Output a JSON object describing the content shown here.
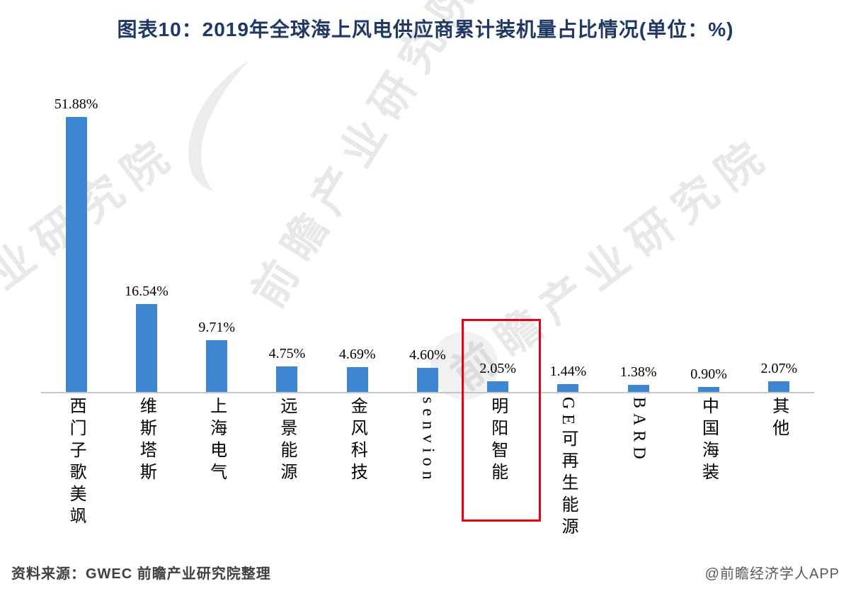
{
  "title": "图表10：2019年全球海上风电供应商累计装机量占比情况(单位：%)",
  "chart_data": {
    "type": "bar",
    "title": "2019年全球海上风电供应商累计装机量占比情况",
    "unit": "%",
    "categories": [
      "西门子歌美飒",
      "维斯塔斯",
      "上海电气",
      "远景能源",
      "金风科技",
      "senvion",
      "明阳智能",
      "GE可再生能源",
      "BARD",
      "中国海装",
      "其他"
    ],
    "values": [
      51.88,
      16.54,
      9.71,
      4.75,
      4.69,
      4.6,
      2.05,
      1.44,
      1.38,
      0.9,
      2.07
    ],
    "value_labels": [
      "51.88%",
      "16.54%",
      "9.71%",
      "4.75%",
      "4.69%",
      "4.60%",
      "2.05%",
      "1.44%",
      "1.38%",
      "0.90%",
      "2.07%"
    ],
    "highlighted_index": 6,
    "highlighted_category": "明阳智能",
    "bar_color": "#3e86cf",
    "highlight_color": "#e60012",
    "ylim": [
      0,
      55
    ],
    "grid": false,
    "legend": "none"
  },
  "footer": {
    "source": "资料来源：GWEC 前瞻产业研究院整理",
    "credit": "@前瞻经济学人APP"
  },
  "watermark": {
    "brand": "前瞻产业研究院",
    "brand_partial": "产业研究院"
  }
}
